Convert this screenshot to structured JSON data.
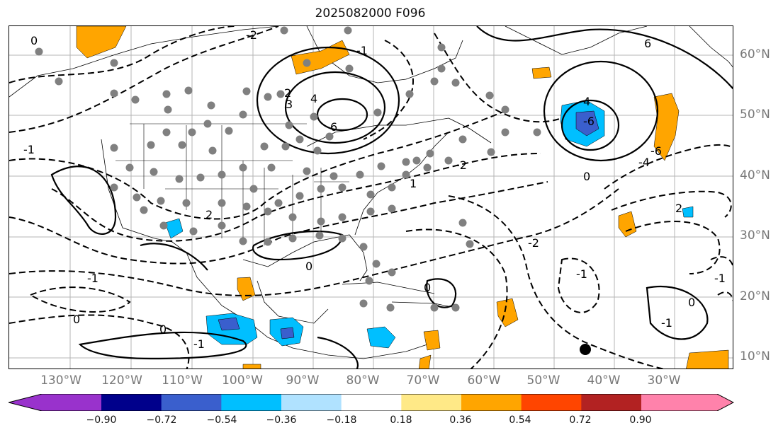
{
  "title": "2025082000 F096",
  "map": {
    "lon_labels": [
      "130°W",
      "120°W",
      "110°W",
      "100°W",
      "90°W",
      "80°W",
      "70°W",
      "60°W",
      "50°W",
      "40°W",
      "30°W"
    ],
    "lat_labels": [
      "60°N",
      "50°N",
      "40°N",
      "30°N",
      "20°N",
      "10°N"
    ],
    "contour_labels": [
      "0",
      "-2",
      "-1",
      "2",
      "3",
      "4",
      "6",
      "-6",
      "0",
      "-1",
      "-2",
      "2",
      "4",
      "6",
      "-4",
      "-6",
      "-2",
      "-1",
      "0",
      "-1",
      "1",
      "0",
      "-1",
      "0",
      "0",
      "-1",
      "2",
      "0",
      "-1"
    ],
    "marker": "black-dot",
    "station_color": "#808080"
  },
  "colorbar": {
    "tick_labels": [
      "−0.90",
      "−0.72",
      "−0.54",
      "−0.36",
      "−0.18",
      "0.18",
      "0.36",
      "0.54",
      "0.72",
      "0.90"
    ],
    "colors": [
      "#9932cc",
      "#00008b",
      "#3a5fcd",
      "#00bfff",
      "#b0e2ff",
      "#ffffff",
      "#ffe987",
      "#ffa500",
      "#ff4500",
      "#b22222",
      "#ff82ab"
    ]
  }
}
